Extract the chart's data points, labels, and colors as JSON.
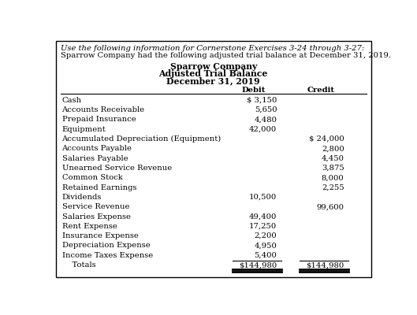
{
  "header_line1": "Use the following information for Cornerstone Exercises 3-24 through 3-27:",
  "header_line2": "Sparrow Company had the following adjusted trial balance at December 31, 2019.",
  "company": "Sparrow Company",
  "report_title": "Adjusted Trial Balance",
  "report_date": "December 31, 2019",
  "col_debit": "Debit",
  "col_credit": "Credit",
  "rows": [
    {
      "account": "Cash",
      "debit": "$ 3,150",
      "credit": ""
    },
    {
      "account": "Accounts Receivable",
      "debit": "5,650",
      "credit": ""
    },
    {
      "account": "Prepaid Insurance",
      "debit": "4,480",
      "credit": ""
    },
    {
      "account": "Equipment",
      "debit": "42,000",
      "credit": ""
    },
    {
      "account": "Accumulated Depreciation (Equipment)",
      "debit": "",
      "credit": "$ 24,000"
    },
    {
      "account": "Accounts Payable",
      "debit": "",
      "credit": "2,800"
    },
    {
      "account": "Salaries Payable",
      "debit": "",
      "credit": "4,450"
    },
    {
      "account": "Unearned Service Revenue",
      "debit": "",
      "credit": "3,875"
    },
    {
      "account": "Common Stock",
      "debit": "",
      "credit": "8,000"
    },
    {
      "account": "Retained Earnings",
      "debit": "",
      "credit": "2,255"
    },
    {
      "account": "Dividends",
      "debit": "10,500",
      "credit": ""
    },
    {
      "account": "Service Revenue",
      "debit": "",
      "credit": "99,600"
    },
    {
      "account": "Salaries Expense",
      "debit": "49,400",
      "credit": ""
    },
    {
      "account": "Rent Expense",
      "debit": "17,250",
      "credit": ""
    },
    {
      "account": "Insurance Expense",
      "debit": "2,200",
      "credit": ""
    },
    {
      "account": "Depreciation Expense",
      "debit": "4,950",
      "credit": ""
    },
    {
      "account": "Income Taxes Expense",
      "debit": "5,400",
      "credit": ""
    },
    {
      "account": "    Totals",
      "debit": "$144,980",
      "credit": "$144,980"
    }
  ],
  "bg_color": "#ffffff",
  "border_color": "#000000",
  "text_color": "#000000",
  "fs_header": 7.2,
  "fs_title": 7.8,
  "fs_table": 7.2
}
